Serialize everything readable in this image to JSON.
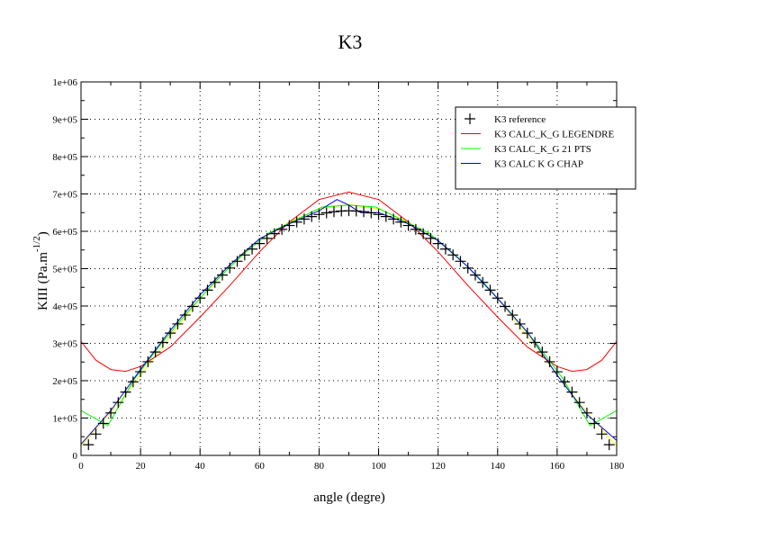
{
  "chart_data": {
    "type": "line",
    "title": "K3",
    "xlabel": "angle (degre)",
    "ylabel": "KIII (Pa.m",
    "ylabel_exponent": "-1/2",
    "ylabel_close": ")",
    "xlim": [
      0,
      180
    ],
    "ylim": [
      0,
      1000000
    ],
    "xticks": [
      0,
      20,
      40,
      60,
      80,
      100,
      120,
      140,
      160,
      180
    ],
    "xtick_labels": [
      "0",
      "20",
      "40",
      "60",
      "80",
      "100",
      "120",
      "140",
      "160",
      "180"
    ],
    "yticks": [
      0,
      100000,
      200000,
      300000,
      400000,
      500000,
      600000,
      700000,
      800000,
      900000,
      1000000
    ],
    "ytick_labels": [
      "0",
      "1e+05",
      "2e+05",
      "3e+05",
      "4e+05",
      "5e+05",
      "6e+05",
      "7e+05",
      "8e+05",
      "9e+05",
      "1e+06"
    ],
    "grid": true,
    "legend_position": "top-right",
    "series": [
      {
        "name": "",
        "color": "#ffff00",
        "style": "line",
        "x": [
          0,
          10,
          20,
          30,
          40,
          50,
          60,
          70,
          80,
          90,
          100,
          110,
          120,
          130,
          140,
          150,
          160,
          170,
          180
        ],
        "y": [
          25000,
          115000,
          215000,
          320000,
          420000,
          505000,
          575000,
          625000,
          660000,
          672000,
          660000,
          625000,
          575000,
          505000,
          420000,
          320000,
          215000,
          115000,
          25000
        ]
      },
      {
        "name": "K3 CALC_K_G LEGENDRE",
        "color": "#ff0000",
        "style": "line",
        "x": [
          0,
          5,
          10,
          15,
          20,
          30,
          40,
          50,
          60,
          70,
          80,
          90,
          100,
          110,
          120,
          130,
          140,
          150,
          160,
          165,
          170,
          175,
          180
        ],
        "y": [
          305000,
          255000,
          230000,
          225000,
          238000,
          290000,
          370000,
          455000,
          545000,
          625000,
          685000,
          705000,
          685000,
          625000,
          545000,
          455000,
          370000,
          290000,
          238000,
          225000,
          230000,
          255000,
          305000
        ]
      },
      {
        "name": "K3 CALC_K_G 21 PTS",
        "color": "#00ff00",
        "style": "line",
        "x": [
          0,
          9,
          18,
          27,
          36,
          45,
          54,
          63,
          72,
          81,
          90,
          99,
          108,
          117,
          126,
          135,
          144,
          153,
          162,
          171,
          180
        ],
        "y": [
          120000,
          80000,
          205000,
          300000,
          385000,
          465000,
          535000,
          595000,
          630000,
          665000,
          670000,
          665000,
          630000,
          595000,
          535000,
          465000,
          385000,
          300000,
          205000,
          80000,
          120000
        ]
      },
      {
        "name": "K3 CALC  K  G CHAP",
        "color": "#0000ff",
        "style": "line",
        "x": [
          0,
          10,
          20,
          30,
          40,
          50,
          60,
          70,
          80,
          86,
          90,
          94,
          100,
          110,
          120,
          130,
          140,
          150,
          160,
          170,
          180
        ],
        "y": [
          30000,
          120000,
          230000,
          335000,
          430000,
          510000,
          580000,
          620000,
          655000,
          685000,
          670000,
          650000,
          650000,
          620000,
          575000,
          505000,
          420000,
          330000,
          215000,
          110000,
          40000
        ]
      },
      {
        "name": "K3 reference",
        "color": "#000000",
        "style": "marker-plus",
        "x": [
          2.5,
          5,
          7.5,
          10,
          12.5,
          15,
          17.5,
          20,
          22.5,
          25,
          27.5,
          30,
          32.5,
          35,
          37.5,
          40,
          42.5,
          45,
          47.5,
          50,
          52.5,
          55,
          57.5,
          60,
          62.5,
          65,
          67.5,
          70,
          72.5,
          75,
          77.5,
          80,
          82.5,
          85,
          87.5,
          90,
          92.5,
          95,
          97.5,
          100,
          102.5,
          105,
          107.5,
          110,
          112.5,
          115,
          117.5,
          120,
          122.5,
          125,
          127.5,
          130,
          132.5,
          135,
          137.5,
          140,
          142.5,
          145,
          147.5,
          150,
          152.5,
          155,
          157.5,
          160,
          162.5,
          165,
          167.5,
          170,
          172.5,
          175,
          177.5
        ],
        "y": [
          28600,
          57100,
          85500,
          113700,
          141700,
          169500,
          197000,
          224000,
          250700,
          276800,
          302400,
          327500,
          351900,
          375700,
          398800,
          421000,
          442500,
          463200,
          482900,
          501700,
          519700,
          536600,
          552400,
          567200,
          581000,
          593600,
          605200,
          615500,
          624700,
          632700,
          639500,
          645000,
          649400,
          652500,
          654300,
          655000,
          654300,
          652500,
          649400,
          645000,
          639500,
          632700,
          624700,
          615500,
          605200,
          593600,
          581000,
          567200,
          552400,
          536600,
          519700,
          501700,
          482900,
          463200,
          442500,
          421000,
          398800,
          375700,
          351900,
          327500,
          302400,
          276800,
          250700,
          224000,
          197000,
          169500,
          141700,
          113700,
          85500,
          57100,
          28600
        ]
      }
    ],
    "legend": [
      {
        "label": "K3 reference",
        "color": "#000000",
        "marker": "plus"
      },
      {
        "label": "K3 CALC_K_G LEGENDRE",
        "color": "#ff0000",
        "marker": "line"
      },
      {
        "label": "K3 CALC_K_G 21 PTS",
        "color": "#00ff00",
        "marker": "line"
      },
      {
        "label": "K3 CALC  K  G CHAP",
        "color": "#0000ff",
        "marker": "line"
      }
    ]
  }
}
